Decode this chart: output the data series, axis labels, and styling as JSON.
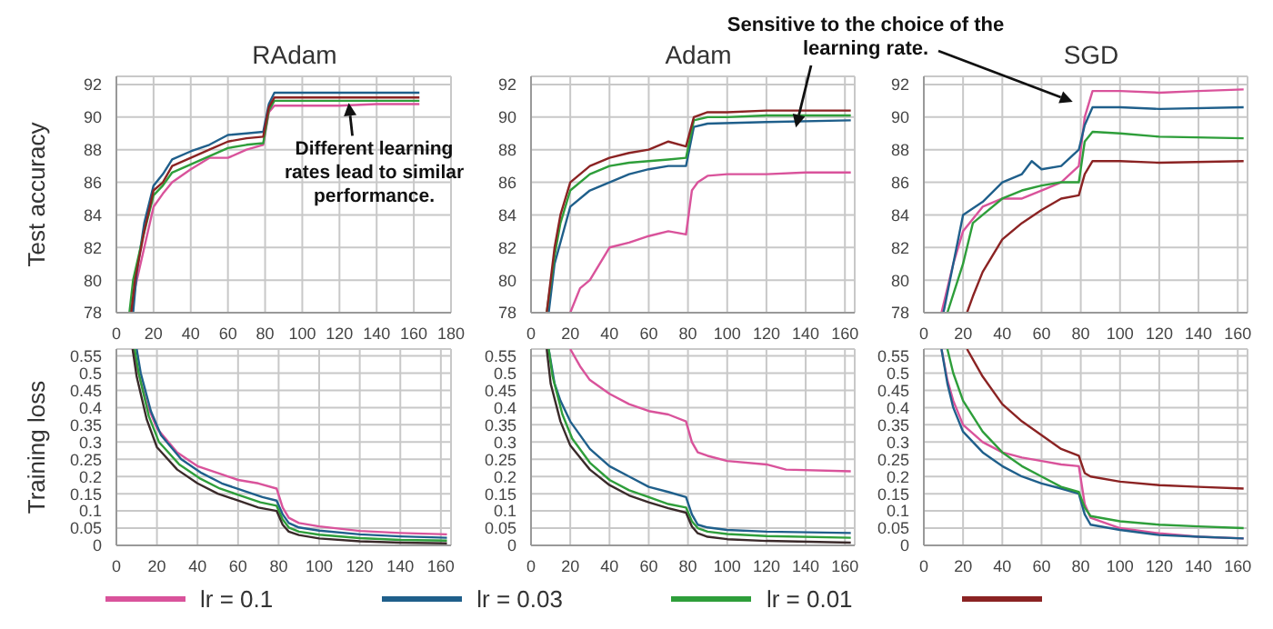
{
  "chart_data": [
    {
      "type": "line",
      "title": "RAdam",
      "ylabel": "Test accuracy",
      "xlim": [
        0,
        180
      ],
      "xticks": [
        0,
        20,
        40,
        60,
        80,
        100,
        120,
        140,
        160,
        180
      ],
      "ylim": [
        78,
        92.5
      ],
      "yticks": [
        78,
        80,
        82,
        84,
        86,
        88,
        90,
        92
      ],
      "grid": true,
      "legend": "bottom",
      "annotations": [
        {
          "text": "Different learning rates lead to similar performance.",
          "x": 125,
          "y": 91.2
        }
      ],
      "series": [
        {
          "name": "lr = 0.1",
          "color": "#d9539b",
          "x": [
            8,
            10,
            15,
            20,
            25,
            30,
            40,
            50,
            60,
            70,
            79,
            82,
            85,
            90,
            100,
            120,
            140,
            163
          ],
          "values": [
            78,
            79.5,
            82,
            84.5,
            85.3,
            86,
            86.8,
            87.5,
            87.5,
            88,
            88.3,
            90.3,
            90.7,
            90.7,
            90.7,
            90.7,
            90.8,
            90.8
          ]
        },
        {
          "name": "lr = 0.03",
          "color": "#1f5f8b",
          "x": [
            9,
            11,
            15,
            20,
            25,
            30,
            40,
            50,
            60,
            70,
            79,
            82,
            85,
            90,
            100,
            120,
            140,
            163
          ],
          "values": [
            78,
            80.5,
            83.5,
            85.8,
            86.5,
            87.4,
            87.9,
            88.3,
            88.9,
            89,
            89.1,
            90.8,
            91.5,
            91.5,
            91.5,
            91.5,
            91.5,
            91.5
          ]
        },
        {
          "name": "lr = 0.01",
          "color": "#2e9e3a",
          "x": [
            7,
            9,
            14,
            20,
            25,
            30,
            40,
            50,
            60,
            70,
            79,
            82,
            85,
            90,
            100,
            120,
            140,
            163
          ],
          "values": [
            78,
            80,
            82.5,
            85.2,
            85.8,
            86.6,
            87.1,
            87.6,
            88.1,
            88.3,
            88.4,
            90.4,
            91,
            91,
            91,
            91,
            91,
            91
          ]
        },
        {
          "color": "#8b2323",
          "x": [
            8,
            10,
            15,
            20,
            25,
            30,
            40,
            50,
            60,
            70,
            79,
            82,
            85,
            90,
            100,
            120,
            140,
            163
          ],
          "values": [
            78,
            80,
            83,
            85.5,
            86,
            87,
            87.5,
            88,
            88.5,
            88.7,
            88.8,
            90.6,
            91.2,
            91.2,
            91.2,
            91.2,
            91.2,
            91.2
          ]
        }
      ]
    },
    {
      "type": "line",
      "title": "Adam",
      "xlim": [
        0,
        165
      ],
      "xticks": [
        0,
        20,
        40,
        60,
        80,
        100,
        120,
        140,
        160
      ],
      "ylim": [
        78,
        92.5
      ],
      "yticks": [
        78,
        80,
        82,
        84,
        86,
        88,
        90,
        92
      ],
      "grid": true,
      "annotations": [
        {
          "text": "Sensitive to the choice of the learning rate.",
          "x": 135,
          "y": 89.7
        }
      ],
      "series": [
        {
          "color": "#d9539b",
          "x": [
            20,
            25,
            30,
            40,
            50,
            60,
            70,
            79,
            82,
            85,
            90,
            100,
            120,
            140,
            163
          ],
          "values": [
            78,
            79.5,
            80,
            82,
            82.3,
            82.7,
            83,
            82.8,
            85.5,
            86,
            86.4,
            86.5,
            86.5,
            86.6,
            86.6
          ]
        },
        {
          "color": "#1f5f8b",
          "x": [
            9,
            12,
            20,
            30,
            40,
            50,
            60,
            70,
            79,
            83,
            90,
            120,
            163
          ],
          "values": [
            78,
            81,
            84.5,
            85.5,
            86,
            86.5,
            86.8,
            87,
            87,
            89.4,
            89.6,
            89.7,
            89.8
          ]
        },
        {
          "color": "#2e9e3a",
          "x": [
            8,
            12,
            15,
            20,
            30,
            40,
            50,
            60,
            70,
            79,
            83,
            90,
            100,
            120,
            140,
            163
          ],
          "values": [
            78,
            81.5,
            83.5,
            85.5,
            86.5,
            87,
            87.2,
            87.3,
            87.4,
            87.5,
            89.8,
            90,
            90,
            90.1,
            90.1,
            90.1
          ]
        },
        {
          "color": "#8b2323",
          "x": [
            8,
            12,
            15,
            20,
            30,
            40,
            50,
            60,
            70,
            79,
            83,
            90,
            100,
            120,
            140,
            163
          ],
          "values": [
            78,
            82,
            84,
            86,
            87,
            87.5,
            87.8,
            88,
            88.5,
            88.2,
            90,
            90.3,
            90.3,
            90.4,
            90.4,
            90.4
          ]
        }
      ]
    },
    {
      "type": "line",
      "title": "SGD",
      "xlim": [
        0,
        165
      ],
      "xticks": [
        0,
        20,
        40,
        60,
        80,
        100,
        120,
        140,
        160
      ],
      "ylim": [
        78,
        92.5
      ],
      "yticks": [
        78,
        80,
        82,
        84,
        86,
        88,
        90,
        92
      ],
      "grid": true,
      "series": [
        {
          "color": "#d9539b",
          "x": [
            9,
            15,
            20,
            30,
            40,
            50,
            60,
            70,
            79,
            82,
            86,
            100,
            120,
            140,
            163
          ],
          "values": [
            78,
            81,
            83,
            84.5,
            85,
            85,
            85.5,
            86,
            87,
            90,
            91.6,
            91.6,
            91.5,
            91.6,
            91.7
          ]
        },
        {
          "color": "#1f5f8b",
          "x": [
            10,
            15,
            20,
            30,
            40,
            50,
            55,
            60,
            70,
            79,
            82,
            86,
            100,
            120,
            163
          ],
          "values": [
            78,
            81,
            84,
            84.8,
            86,
            86.5,
            87.3,
            86.8,
            87,
            88,
            89.5,
            90.6,
            90.6,
            90.5,
            90.6
          ]
        },
        {
          "color": "#2e9e3a",
          "x": [
            12,
            20,
            25,
            30,
            40,
            50,
            60,
            70,
            79,
            82,
            86,
            100,
            120,
            163
          ],
          "values": [
            78,
            81,
            83.5,
            84,
            85,
            85.5,
            85.8,
            86,
            86,
            88.5,
            89.1,
            89,
            88.8,
            88.7
          ]
        },
        {
          "color": "#8b2323",
          "x": [
            22,
            25,
            30,
            40,
            50,
            60,
            70,
            79,
            82,
            86,
            100,
            120,
            163
          ],
          "values": [
            78,
            79,
            80.5,
            82.5,
            83.5,
            84.3,
            85,
            85.2,
            86.5,
            87.3,
            87.3,
            87.2,
            87.3
          ]
        }
      ]
    },
    {
      "type": "line",
      "ylabel": "Training loss",
      "xlim": [
        0,
        165
      ],
      "xticks": [
        0,
        20,
        40,
        60,
        80,
        100,
        120,
        140,
        160
      ],
      "ylim": [
        0,
        0.57
      ],
      "yticks": [
        0,
        0.05,
        0.1,
        0.15,
        0.2,
        0.25,
        0.3,
        0.35,
        0.4,
        0.45,
        0.5,
        0.55
      ],
      "grid": true,
      "series": [
        {
          "color": "#d9539b",
          "x": [
            8,
            10,
            15,
            20,
            30,
            40,
            50,
            60,
            70,
            79,
            82,
            85,
            90,
            100,
            120,
            140,
            163
          ],
          "values": [
            0.57,
            0.52,
            0.41,
            0.34,
            0.27,
            0.23,
            0.21,
            0.19,
            0.18,
            0.165,
            0.11,
            0.08,
            0.065,
            0.055,
            0.042,
            0.036,
            0.032
          ]
        },
        {
          "color": "#1f5f8b",
          "x": [
            10,
            12,
            17,
            22,
            32,
            42,
            52,
            62,
            72,
            79,
            82,
            85,
            90,
            100,
            120,
            140,
            163
          ],
          "values": [
            0.57,
            0.5,
            0.39,
            0.32,
            0.25,
            0.21,
            0.18,
            0.16,
            0.14,
            0.13,
            0.09,
            0.065,
            0.052,
            0.043,
            0.032,
            0.026,
            0.022
          ]
        },
        {
          "color": "#2e9e3a",
          "x": [
            9,
            11,
            16,
            21,
            31,
            41,
            51,
            61,
            71,
            79,
            82,
            85,
            90,
            100,
            120,
            140,
            163
          ],
          "values": [
            0.57,
            0.5,
            0.375,
            0.3,
            0.235,
            0.195,
            0.165,
            0.145,
            0.125,
            0.115,
            0.075,
            0.052,
            0.04,
            0.031,
            0.021,
            0.016,
            0.014
          ]
        },
        {
          "color": "#3a2a2a",
          "x": [
            8,
            10,
            15,
            20,
            30,
            40,
            50,
            60,
            70,
            79,
            82,
            85,
            90,
            100,
            120,
            140,
            163
          ],
          "values": [
            0.57,
            0.49,
            0.365,
            0.285,
            0.22,
            0.18,
            0.15,
            0.13,
            0.11,
            0.1,
            0.06,
            0.04,
            0.03,
            0.02,
            0.012,
            0.008,
            0.006
          ]
        }
      ]
    },
    {
      "type": "line",
      "xlim": [
        0,
        165
      ],
      "xticks": [
        0,
        20,
        40,
        60,
        80,
        100,
        120,
        140,
        160
      ],
      "ylim": [
        0,
        0.57
      ],
      "yticks": [
        0,
        0.05,
        0.1,
        0.15,
        0.2,
        0.25,
        0.3,
        0.35,
        0.4,
        0.45,
        0.5,
        0.55
      ],
      "grid": true,
      "series": [
        {
          "color": "#d9539b",
          "x": [
            20,
            25,
            30,
            40,
            50,
            60,
            70,
            79,
            82,
            85,
            90,
            100,
            120,
            130,
            163
          ],
          "values": [
            0.57,
            0.52,
            0.48,
            0.44,
            0.41,
            0.39,
            0.38,
            0.36,
            0.3,
            0.27,
            0.26,
            0.245,
            0.235,
            0.22,
            0.215
          ]
        },
        {
          "color": "#1f5f8b",
          "x": [
            9,
            12,
            15,
            20,
            30,
            40,
            50,
            60,
            70,
            79,
            82,
            85,
            90,
            100,
            120,
            163
          ],
          "values": [
            0.57,
            0.47,
            0.42,
            0.36,
            0.28,
            0.23,
            0.2,
            0.17,
            0.155,
            0.14,
            0.09,
            0.06,
            0.052,
            0.045,
            0.04,
            0.036
          ]
        },
        {
          "color": "#2e9e3a",
          "x": [
            9,
            11,
            16,
            21,
            30,
            40,
            50,
            60,
            70,
            79,
            82,
            85,
            90,
            100,
            120,
            163
          ],
          "values": [
            0.57,
            0.49,
            0.38,
            0.31,
            0.24,
            0.19,
            0.16,
            0.14,
            0.12,
            0.11,
            0.07,
            0.05,
            0.04,
            0.033,
            0.027,
            0.022
          ]
        },
        {
          "color": "#3a2a2a",
          "x": [
            8,
            10,
            15,
            20,
            30,
            40,
            50,
            60,
            70,
            79,
            82,
            85,
            90,
            100,
            120,
            163
          ],
          "values": [
            0.57,
            0.47,
            0.36,
            0.29,
            0.22,
            0.175,
            0.145,
            0.125,
            0.108,
            0.095,
            0.055,
            0.035,
            0.025,
            0.018,
            0.013,
            0.008
          ]
        }
      ]
    },
    {
      "type": "line",
      "xlim": [
        0,
        165
      ],
      "xticks": [
        0,
        20,
        40,
        60,
        80,
        100,
        120,
        140,
        160
      ],
      "ylim": [
        0,
        0.57
      ],
      "yticks": [
        0,
        0.05,
        0.1,
        0.15,
        0.2,
        0.25,
        0.3,
        0.35,
        0.4,
        0.45,
        0.5,
        0.55
      ],
      "grid": true,
      "series": [
        {
          "color": "#d9539b",
          "x": [
            9,
            12,
            15,
            20,
            30,
            40,
            50,
            60,
            70,
            79,
            82,
            85,
            100,
            120,
            140,
            163
          ],
          "values": [
            0.57,
            0.48,
            0.42,
            0.35,
            0.3,
            0.27,
            0.255,
            0.245,
            0.235,
            0.23,
            0.12,
            0.08,
            0.05,
            0.035,
            0.025,
            0.02
          ]
        },
        {
          "color": "#1f5f8b",
          "x": [
            9,
            12,
            15,
            20,
            30,
            40,
            50,
            60,
            70,
            79,
            82,
            85,
            100,
            120,
            140,
            163
          ],
          "values": [
            0.57,
            0.47,
            0.4,
            0.33,
            0.27,
            0.23,
            0.2,
            0.18,
            0.165,
            0.15,
            0.09,
            0.06,
            0.045,
            0.03,
            0.025,
            0.02
          ]
        },
        {
          "color": "#2e9e3a",
          "x": [
            12,
            15,
            20,
            30,
            40,
            50,
            60,
            70,
            79,
            82,
            85,
            100,
            120,
            140,
            163
          ],
          "values": [
            0.57,
            0.5,
            0.42,
            0.33,
            0.27,
            0.23,
            0.2,
            0.17,
            0.155,
            0.11,
            0.085,
            0.07,
            0.06,
            0.055,
            0.05
          ]
        },
        {
          "color": "#8b2323",
          "x": [
            22,
            30,
            40,
            50,
            60,
            70,
            79,
            82,
            85,
            100,
            120,
            140,
            163
          ],
          "values": [
            0.57,
            0.49,
            0.41,
            0.36,
            0.32,
            0.28,
            0.26,
            0.21,
            0.2,
            0.185,
            0.175,
            0.17,
            0.165
          ]
        }
      ]
    }
  ]
}
